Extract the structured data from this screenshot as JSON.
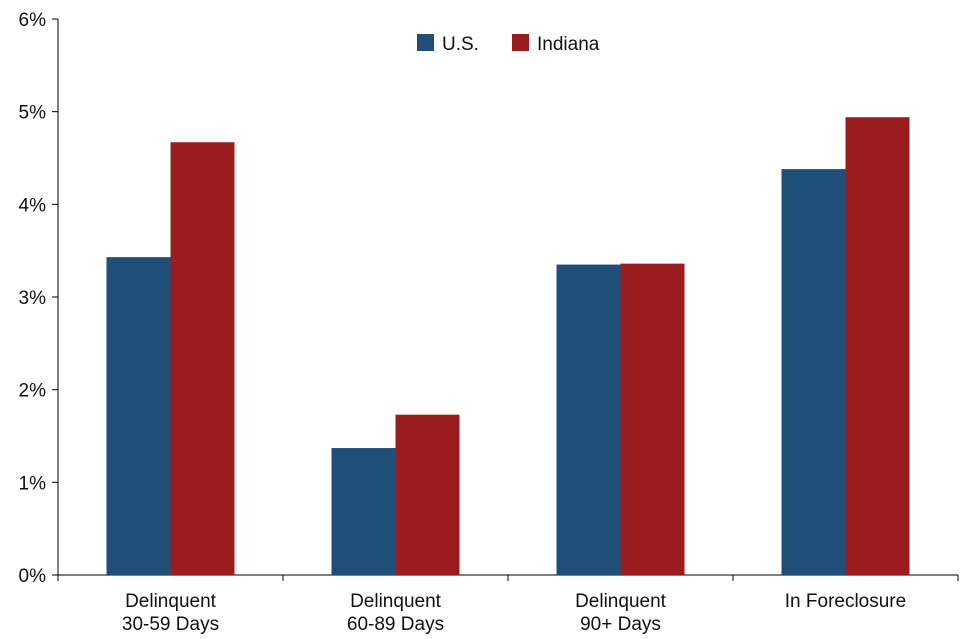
{
  "chart_data": {
    "type": "bar",
    "categories": [
      [
        "Delinquent",
        "30-59 Days"
      ],
      [
        "Delinquent",
        "60-89 Days"
      ],
      [
        "Delinquent",
        "90+ Days"
      ],
      [
        "In Foreclosure"
      ]
    ],
    "series": [
      {
        "name": "U.S.",
        "color": "#1f4e79",
        "values": [
          3.43,
          1.37,
          3.35,
          4.38
        ]
      },
      {
        "name": "Indiana",
        "color": "#9b1c1f",
        "values": [
          4.67,
          1.73,
          3.36,
          4.94
        ]
      }
    ],
    "ylim": [
      0,
      6
    ],
    "yticks": [
      0,
      1,
      2,
      3,
      4,
      5,
      6
    ],
    "ytick_suffix": "%",
    "legend_position": "top-center",
    "grid": false
  }
}
